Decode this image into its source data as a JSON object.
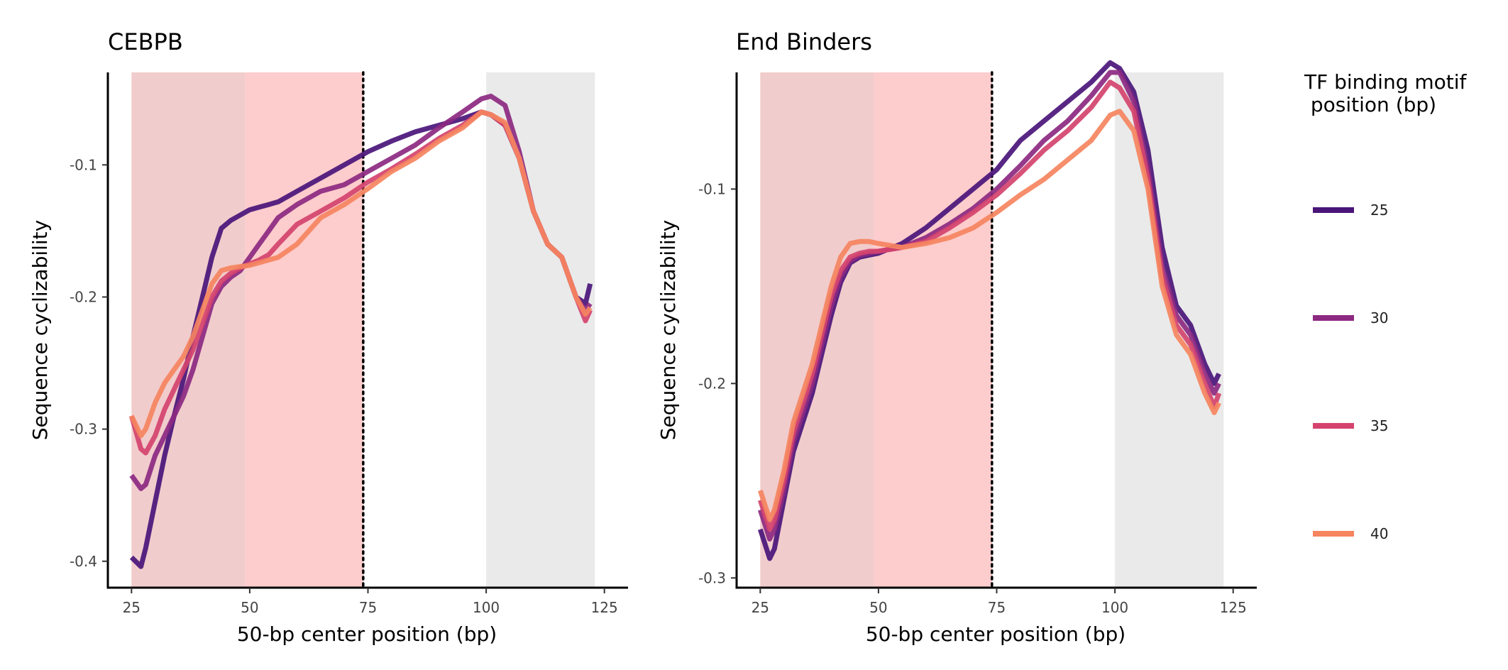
{
  "colors": {
    "shade_dark": "#e6a3a3",
    "shade_light": "#fc9a9a",
    "shade_grey": "#d9d9d9",
    "s25": "#4a1579",
    "s30": "#8c2981",
    "s35": "#d4436e",
    "s40": "#f5845f"
  },
  "legend": {
    "title_line1": "TF binding motif",
    "title_line2": " position (bp)",
    "items": [
      {
        "label": "25",
        "color": "#4a1579"
      },
      {
        "label": "30",
        "color": "#8c2981"
      },
      {
        "label": "35",
        "color": "#d4436e"
      },
      {
        "label": "40",
        "color": "#f5845f"
      }
    ]
  },
  "chart_data": [
    {
      "type": "line",
      "title": "CEBPB",
      "xlabel": "50-bp center position (bp)",
      "ylabel": "Sequence cyclizability",
      "xlim": [
        20,
        130
      ],
      "ylim": [
        -0.42,
        -0.03
      ],
      "xticks": [
        25,
        50,
        75,
        100,
        125
      ],
      "yticks": [
        -0.4,
        -0.3,
        -0.2,
        -0.1
      ],
      "ytick_labels": [
        "-0.4",
        "-0.3",
        "-0.2",
        "-0.1"
      ],
      "shaded_regions": [
        {
          "x0": 25,
          "x1": 49,
          "color": "shade_dark"
        },
        {
          "x0": 49,
          "x1": 74,
          "color": "shade_light"
        },
        {
          "x0": 100,
          "x1": 123,
          "color": "shade_grey"
        }
      ],
      "vline": 74,
      "series": [
        {
          "name": "25",
          "color": "#4a1579",
          "x": [
            25,
            27,
            28,
            30,
            32,
            34,
            36,
            38,
            40,
            42,
            44,
            46,
            48,
            50,
            52,
            54,
            56,
            60,
            65,
            70,
            75,
            80,
            85,
            90,
            95,
            99,
            101,
            104,
            107,
            110,
            113,
            116,
            119,
            121,
            122
          ],
          "y": [
            -0.397,
            -0.404,
            -0.39,
            -0.355,
            -0.32,
            -0.29,
            -0.262,
            -0.23,
            -0.2,
            -0.17,
            -0.148,
            -0.142,
            -0.138,
            -0.134,
            -0.132,
            -0.13,
            -0.128,
            -0.12,
            -0.11,
            -0.1,
            -0.09,
            -0.082,
            -0.075,
            -0.07,
            -0.065,
            -0.06,
            -0.062,
            -0.07,
            -0.095,
            -0.135,
            -0.16,
            -0.17,
            -0.2,
            -0.205,
            -0.19
          ]
        },
        {
          "name": "30",
          "color": "#8c2981",
          "x": [
            25,
            27,
            28,
            30,
            32,
            34,
            36,
            38,
            40,
            42,
            44,
            46,
            48,
            50,
            52,
            54,
            56,
            60,
            65,
            70,
            75,
            80,
            85,
            90,
            95,
            99,
            101,
            104,
            107,
            110,
            113,
            116,
            119,
            121,
            122
          ],
          "y": [
            -0.335,
            -0.345,
            -0.342,
            -0.32,
            -0.305,
            -0.29,
            -0.275,
            -0.255,
            -0.23,
            -0.205,
            -0.192,
            -0.185,
            -0.18,
            -0.17,
            -0.16,
            -0.15,
            -0.14,
            -0.13,
            -0.12,
            -0.115,
            -0.105,
            -0.095,
            -0.085,
            -0.072,
            -0.06,
            -0.05,
            -0.048,
            -0.055,
            -0.09,
            -0.135,
            -0.16,
            -0.17,
            -0.2,
            -0.21,
            -0.205
          ]
        },
        {
          "name": "35",
          "color": "#d4436e",
          "x": [
            25,
            27,
            28,
            30,
            32,
            34,
            36,
            38,
            40,
            42,
            44,
            46,
            48,
            50,
            52,
            54,
            56,
            60,
            65,
            70,
            75,
            80,
            85,
            90,
            95,
            99,
            101,
            104,
            107,
            110,
            113,
            116,
            119,
            121,
            122
          ],
          "y": [
            -0.29,
            -0.315,
            -0.318,
            -0.305,
            -0.285,
            -0.27,
            -0.255,
            -0.24,
            -0.22,
            -0.2,
            -0.188,
            -0.182,
            -0.178,
            -0.175,
            -0.172,
            -0.168,
            -0.16,
            -0.145,
            -0.135,
            -0.125,
            -0.113,
            -0.103,
            -0.092,
            -0.08,
            -0.07,
            -0.06,
            -0.062,
            -0.07,
            -0.095,
            -0.135,
            -0.16,
            -0.17,
            -0.2,
            -0.218,
            -0.21
          ]
        },
        {
          "name": "40",
          "color": "#f5845f",
          "x": [
            25,
            27,
            28,
            30,
            32,
            34,
            36,
            38,
            40,
            42,
            44,
            46,
            48,
            50,
            52,
            54,
            56,
            60,
            65,
            70,
            75,
            80,
            85,
            90,
            95,
            99,
            101,
            104,
            107,
            110,
            113,
            116,
            119,
            121,
            122
          ],
          "y": [
            -0.29,
            -0.305,
            -0.3,
            -0.28,
            -0.265,
            -0.255,
            -0.245,
            -0.23,
            -0.21,
            -0.19,
            -0.18,
            -0.178,
            -0.177,
            -0.176,
            -0.174,
            -0.172,
            -0.17,
            -0.16,
            -0.14,
            -0.13,
            -0.118,
            -0.105,
            -0.095,
            -0.082,
            -0.072,
            -0.06,
            -0.062,
            -0.068,
            -0.095,
            -0.135,
            -0.16,
            -0.17,
            -0.2,
            -0.213,
            -0.208
          ]
        }
      ]
    },
    {
      "type": "line",
      "title": "End Binders",
      "xlabel": "50-bp center position (bp)",
      "ylabel": "Sequence cyclizability",
      "xlim": [
        20,
        130
      ],
      "ylim": [
        -0.305,
        -0.04
      ],
      "xticks": [
        25,
        50,
        75,
        100,
        125
      ],
      "yticks": [
        -0.3,
        -0.2,
        -0.1
      ],
      "ytick_labels": [
        "-0.3",
        "-0.2",
        "-0.1"
      ],
      "shaded_regions": [
        {
          "x0": 25,
          "x1": 49,
          "color": "shade_dark"
        },
        {
          "x0": 49,
          "x1": 74,
          "color": "shade_light"
        },
        {
          "x0": 100,
          "x1": 123,
          "color": "shade_grey"
        }
      ],
      "vline": 74,
      "series": [
        {
          "name": "25",
          "color": "#4a1579",
          "x": [
            25,
            27,
            28,
            30,
            32,
            34,
            36,
            38,
            40,
            42,
            44,
            46,
            48,
            50,
            55,
            60,
            65,
            70,
            75,
            80,
            85,
            90,
            95,
            99,
            101,
            104,
            107,
            110,
            113,
            116,
            119,
            121,
            122
          ],
          "y": [
            -0.275,
            -0.29,
            -0.285,
            -0.26,
            -0.235,
            -0.22,
            -0.205,
            -0.185,
            -0.165,
            -0.148,
            -0.138,
            -0.135,
            -0.134,
            -0.133,
            -0.128,
            -0.12,
            -0.11,
            -0.1,
            -0.09,
            -0.075,
            -0.065,
            -0.055,
            -0.045,
            -0.035,
            -0.038,
            -0.05,
            -0.08,
            -0.13,
            -0.16,
            -0.17,
            -0.19,
            -0.2,
            -0.195
          ]
        },
        {
          "name": "30",
          "color": "#8c2981",
          "x": [
            25,
            27,
            28,
            30,
            32,
            34,
            36,
            38,
            40,
            42,
            44,
            46,
            48,
            50,
            55,
            60,
            65,
            70,
            75,
            80,
            85,
            90,
            95,
            99,
            101,
            104,
            107,
            110,
            113,
            116,
            119,
            121,
            122
          ],
          "y": [
            -0.265,
            -0.28,
            -0.275,
            -0.255,
            -0.23,
            -0.215,
            -0.2,
            -0.18,
            -0.16,
            -0.145,
            -0.137,
            -0.134,
            -0.133,
            -0.132,
            -0.13,
            -0.125,
            -0.118,
            -0.11,
            -0.1,
            -0.088,
            -0.075,
            -0.065,
            -0.052,
            -0.04,
            -0.04,
            -0.055,
            -0.09,
            -0.14,
            -0.165,
            -0.175,
            -0.195,
            -0.205,
            -0.2
          ]
        },
        {
          "name": "35",
          "color": "#d4436e",
          "x": [
            25,
            27,
            28,
            30,
            32,
            34,
            36,
            38,
            40,
            42,
            44,
            46,
            48,
            50,
            55,
            60,
            65,
            70,
            75,
            80,
            85,
            90,
            95,
            99,
            101,
            104,
            107,
            110,
            113,
            116,
            119,
            121,
            122
          ],
          "y": [
            -0.26,
            -0.275,
            -0.27,
            -0.25,
            -0.225,
            -0.21,
            -0.195,
            -0.175,
            -0.155,
            -0.142,
            -0.135,
            -0.133,
            -0.132,
            -0.132,
            -0.13,
            -0.127,
            -0.12,
            -0.112,
            -0.103,
            -0.092,
            -0.08,
            -0.07,
            -0.058,
            -0.045,
            -0.048,
            -0.06,
            -0.095,
            -0.145,
            -0.17,
            -0.18,
            -0.2,
            -0.212,
            -0.205
          ]
        },
        {
          "name": "40",
          "color": "#f5845f",
          "x": [
            25,
            27,
            28,
            30,
            32,
            34,
            36,
            38,
            40,
            42,
            44,
            46,
            48,
            50,
            55,
            60,
            65,
            70,
            75,
            80,
            85,
            90,
            95,
            99,
            101,
            104,
            107,
            110,
            113,
            116,
            119,
            121,
            122
          ],
          "y": [
            -0.255,
            -0.27,
            -0.265,
            -0.245,
            -0.22,
            -0.205,
            -0.19,
            -0.17,
            -0.15,
            -0.135,
            -0.128,
            -0.127,
            -0.127,
            -0.128,
            -0.13,
            -0.128,
            -0.125,
            -0.12,
            -0.112,
            -0.103,
            -0.095,
            -0.085,
            -0.075,
            -0.062,
            -0.06,
            -0.07,
            -0.1,
            -0.15,
            -0.175,
            -0.185,
            -0.205,
            -0.215,
            -0.21
          ]
        }
      ]
    }
  ]
}
